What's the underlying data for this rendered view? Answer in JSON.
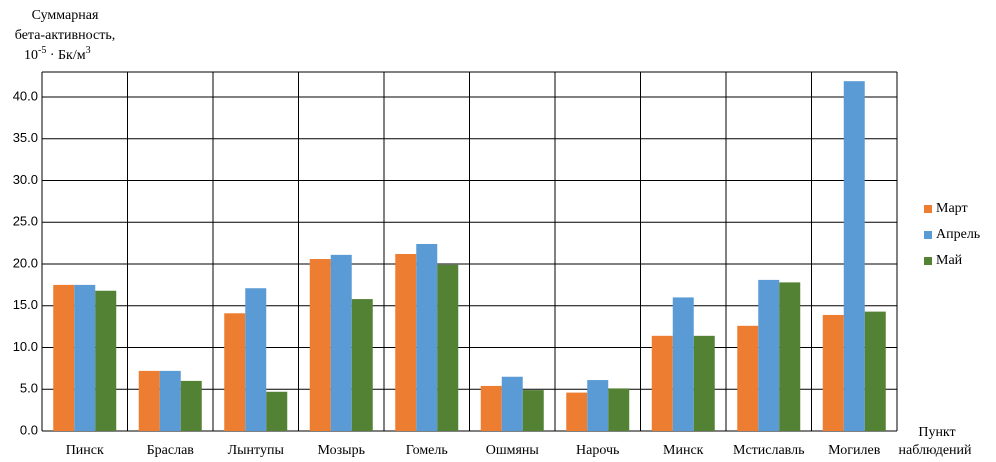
{
  "chart_data": {
    "type": "bar",
    "y_label": [
      "Суммарная",
      "бета-активность,"
    ],
    "y_unit": {
      "base": "10",
      "exp": "-5",
      "mid": " · Бк/м",
      "exp2": "3"
    },
    "x_label": [
      "Пункт",
      "наблюдений"
    ],
    "categories": [
      "Пинск",
      "Браслав",
      "Лынтупы",
      "Мозырь",
      "Гомель",
      "Ошмяны",
      "Нарочь",
      "Минск",
      "Мстиславль",
      "Могилев"
    ],
    "series": [
      {
        "name": "Март",
        "color": "#ed7d31",
        "values": [
          17.5,
          7.2,
          14.1,
          20.6,
          21.2,
          5.4,
          4.6,
          11.4,
          12.6,
          13.9
        ]
      },
      {
        "name": "Апрель",
        "color": "#5b9bd5",
        "values": [
          17.5,
          7.2,
          17.1,
          21.1,
          22.4,
          6.5,
          6.1,
          16.0,
          18.1,
          41.9
        ]
      },
      {
        "name": "Май",
        "color": "#548235",
        "values": [
          16.8,
          6.0,
          4.7,
          15.8,
          19.9,
          4.9,
          5.1,
          11.4,
          17.8,
          14.3
        ]
      }
    ],
    "ylim": [
      0,
      43
    ],
    "yticks": [
      {
        "value": 0,
        "label": "0.0"
      },
      {
        "value": 5,
        "label": "5.0"
      },
      {
        "value": 10,
        "label": "10.0"
      },
      {
        "value": 15,
        "label": "15.0"
      },
      {
        "value": 20,
        "label": "20.0"
      },
      {
        "value": 25,
        "label": "25.0"
      },
      {
        "value": 30,
        "label": "30.0"
      },
      {
        "value": 35,
        "label": "35.0"
      },
      {
        "value": 40,
        "label": "40.0"
      }
    ],
    "grid": true,
    "legend": "right"
  }
}
